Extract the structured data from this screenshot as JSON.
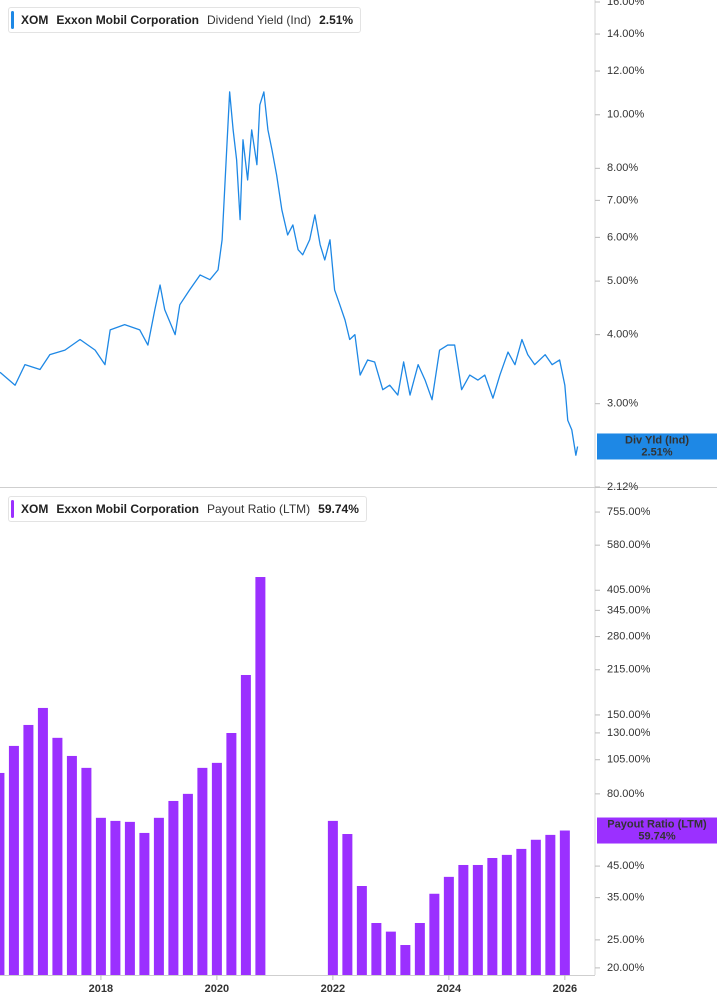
{
  "chart_data": [
    {
      "type": "line",
      "ticker": "XOM",
      "company": "Exxon Mobil Corporation",
      "tag_label": "Div Yld (Ind)",
      "x": [
        2016.26,
        2016.52,
        2016.69,
        2016.95,
        2017.12,
        2017.38,
        2017.64,
        2017.9,
        2018.07,
        2018.16,
        2018.41,
        2018.67,
        2018.81,
        2018.93,
        2019.02,
        2019.1,
        2019.28,
        2019.36,
        2019.53,
        2019.71,
        2019.88,
        2020.02,
        2020.09,
        2020.16,
        2020.22,
        2020.28,
        2020.34,
        2020.4,
        2020.45,
        2020.53,
        2020.6,
        2020.69,
        2020.74,
        2020.81,
        2020.88,
        2020.95,
        2021.03,
        2021.12,
        2021.22,
        2021.31,
        2021.4,
        2021.48,
        2021.6,
        2021.69,
        2021.78,
        2021.86,
        2021.95,
        2022.03,
        2022.12,
        2022.21,
        2022.29,
        2022.38,
        2022.47,
        2022.6,
        2022.72,
        2022.86,
        2022.98,
        2023.12,
        2023.22,
        2023.33,
        2023.47,
        2023.59,
        2023.71,
        2023.84,
        2023.98,
        2024.1,
        2024.22,
        2024.36,
        2024.5,
        2024.62,
        2024.76,
        2024.88,
        2025.02,
        2025.14,
        2025.26,
        2025.36,
        2025.48,
        2025.66,
        2025.78,
        2025.91,
        2026.0,
        2026.05,
        2026.12,
        2026.19,
        2026.22
      ],
      "series": [
        {
          "name": "Dividend Yield (Ind)",
          "color": "#1e88e5",
          "values": [
            3.42,
            3.24,
            3.53,
            3.46,
            3.68,
            3.75,
            3.92,
            3.75,
            3.53,
            4.08,
            4.17,
            4.08,
            3.83,
            4.44,
            4.92,
            4.44,
            4,
            4.53,
            4.82,
            5.13,
            5.03,
            5.24,
            5.94,
            8.29,
            11,
            9.39,
            8.29,
            6.46,
            9.01,
            7.62,
            9.39,
            8.12,
            10.42,
            11,
            9.39,
            8.64,
            7.78,
            6.73,
            6.06,
            6.32,
            5.7,
            5.58,
            5.94,
            6.59,
            5.82,
            5.46,
            5.94,
            4.82,
            4.53,
            4.25,
            3.92,
            4,
            3.38,
            3.6,
            3.57,
            3.18,
            3.24,
            3.11,
            3.57,
            3.11,
            3.53,
            3.31,
            3.05,
            3.75,
            3.83,
            3.83,
            3.18,
            3.38,
            3.31,
            3.38,
            3.07,
            3.38,
            3.72,
            3.53,
            3.92,
            3.68,
            3.53,
            3.68,
            3.53,
            3.6,
            3.24,
            2.8,
            2.69,
            2.42,
            2.51
          ],
          "value_labels": [
            null,
            null,
            null,
            null,
            null,
            null,
            null,
            null,
            null,
            null,
            null,
            null,
            null,
            null,
            null,
            null,
            null,
            null,
            null,
            null,
            null,
            null,
            null,
            null,
            null,
            null,
            null,
            null,
            null,
            null,
            null,
            null,
            null,
            null,
            null,
            null,
            null,
            null,
            null,
            null,
            null,
            null,
            null,
            null,
            null,
            null,
            null,
            null,
            null,
            null,
            null,
            null,
            null,
            null,
            null,
            null,
            null,
            null,
            null,
            null,
            null,
            null,
            null,
            null,
            null,
            null,
            null,
            null,
            null,
            null,
            null,
            null,
            null,
            null,
            null,
            null,
            null,
            null,
            null,
            null,
            null,
            null,
            null,
            null,
            "2.51%"
          ]
        }
      ],
      "xlim": [
        2016.26,
        2026.52
      ],
      "ylim": [
        2.12,
        16
      ],
      "log_scale": true,
      "grid": false,
      "yticks": [
        {
          "value": 2.12,
          "label": "2.12%"
        },
        {
          "value": 3,
          "label": "3.00%"
        },
        {
          "value": 4,
          "label": "4.00%"
        },
        {
          "value": 5,
          "label": "5.00%"
        },
        {
          "value": 6,
          "label": "6.00%"
        },
        {
          "value": 7,
          "label": "7.00%"
        },
        {
          "value": 8,
          "label": "8.00%"
        },
        {
          "value": 10,
          "label": "10.00%"
        },
        {
          "value": 12,
          "label": "12.00%"
        },
        {
          "value": 14,
          "label": "14.00%"
        },
        {
          "value": 16,
          "label": "16.00%"
        }
      ]
    },
    {
      "type": "bar",
      "ticker": "XOM",
      "company": "Exxon Mobil Corporation",
      "x": [
        2016.25,
        2016.5,
        2016.75,
        2017,
        2017.25,
        2017.5,
        2017.75,
        2018,
        2018.25,
        2018.5,
        2018.75,
        2019,
        2019.25,
        2019.5,
        2019.75,
        2020,
        2020.25,
        2020.5,
        2020.75,
        2021,
        2021.25,
        2021.5,
        2021.75,
        2022,
        2022.25,
        2022.5,
        2022.75,
        2023,
        2023.25,
        2023.5,
        2023.75,
        2024,
        2024.25,
        2024.5,
        2024.75,
        2025,
        2025.25,
        2025.5,
        2025.75,
        2026
      ],
      "series": [
        {
          "name": "Payout Ratio (LTM)",
          "color": "#9b30ff",
          "values": [
            94.5,
            117.2,
            138.5,
            158.6,
            125,
            108.2,
            98.4,
            66.1,
            64.5,
            64,
            58.6,
            66.1,
            75.6,
            80,
            98.4,
            102.4,
            129.9,
            206.2,
            450,
            null,
            null,
            null,
            null,
            64.5,
            58.1,
            38.4,
            28.6,
            26.7,
            24,
            28.6,
            36.1,
            41.3,
            45.4,
            45.4,
            48,
            49.2,
            51.6,
            55.5,
            57.7,
            59.74
          ],
          "value_labels": [
            null,
            null,
            null,
            null,
            null,
            null,
            null,
            null,
            null,
            null,
            null,
            null,
            null,
            null,
            null,
            null,
            null,
            null,
            null,
            null,
            null,
            null,
            null,
            null,
            null,
            null,
            null,
            null,
            null,
            null,
            null,
            null,
            null,
            null,
            null,
            null,
            null,
            null,
            null,
            "59.74%"
          ]
        }
      ],
      "xlim": [
        2016.26,
        2026.52
      ],
      "ylim": [
        18.9,
        900
      ],
      "log_scale": true,
      "grid": false,
      "xticks": [
        2018,
        2020,
        2022,
        2024,
        2026
      ],
      "yticks": [
        {
          "value": 20,
          "label": "20.00%"
        },
        {
          "value": 25,
          "label": "25.00%"
        },
        {
          "value": 35,
          "label": "35.00%"
        },
        {
          "value": 45,
          "label": "45.00%"
        },
        {
          "value": 80,
          "label": "80.00%"
        },
        {
          "value": 105,
          "label": "105.00%"
        },
        {
          "value": 130,
          "label": "130.00%"
        },
        {
          "value": 150,
          "label": "150.00%"
        },
        {
          "value": 215,
          "label": "215.00%"
        },
        {
          "value": 280,
          "label": "280.00%"
        },
        {
          "value": 345,
          "label": "345.00%"
        },
        {
          "value": 405,
          "label": "405.00%"
        },
        {
          "value": 580,
          "label": "580.00%"
        },
        {
          "value": 755,
          "label": "755.00%"
        }
      ]
    }
  ]
}
